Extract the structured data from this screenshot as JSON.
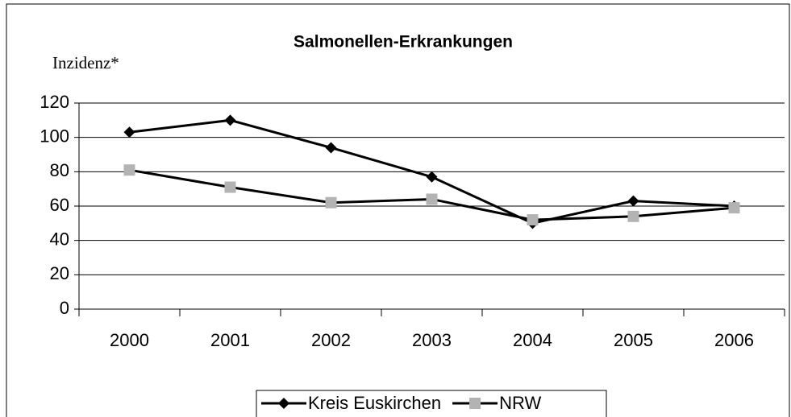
{
  "chart_data": {
    "type": "line",
    "title": "Salmonellen-Erkrankungen",
    "y_label": "Inzidenz*",
    "categories": [
      "2000",
      "2001",
      "2002",
      "2003",
      "2004",
      "2005",
      "2006"
    ],
    "series": [
      {
        "name": "Kreis Euskirchen",
        "color": "#000000",
        "marker": "diamond",
        "values": [
          103,
          110,
          94,
          77,
          50,
          63,
          60
        ]
      },
      {
        "name": "NRW",
        "color": "#b3b3b3",
        "line_color": "#000000",
        "marker": "square",
        "values": [
          81,
          71,
          62,
          64,
          52,
          54,
          59
        ]
      }
    ],
    "ylim": [
      0,
      120
    ],
    "yticks": [
      0,
      20,
      40,
      60,
      80,
      100,
      120
    ],
    "grid": true,
    "legend": "bottom"
  }
}
